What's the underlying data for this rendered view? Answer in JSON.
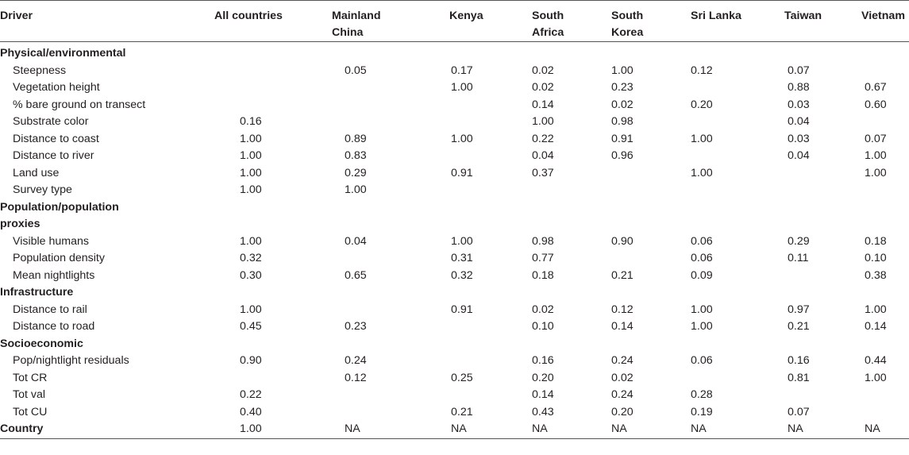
{
  "columns": [
    "Driver",
    "All countries",
    "Mainland China",
    "Kenya",
    "South Africa",
    "South Korea",
    "Sri Lanka",
    "Taiwan",
    "Vietnam"
  ],
  "rows": [
    {
      "type": "section",
      "label": "Physical/environmental",
      "values": [
        "",
        "",
        "",
        "",
        "",
        "",
        "",
        ""
      ]
    },
    {
      "type": "item",
      "label": "Steepness",
      "values": [
        "",
        "0.05",
        "0.17",
        "0.02",
        "1.00",
        "0.12",
        "0.07",
        ""
      ]
    },
    {
      "type": "item",
      "label": "Vegetation height",
      "values": [
        "",
        "",
        "1.00",
        "0.02",
        "0.23",
        "",
        "0.88",
        "0.67"
      ]
    },
    {
      "type": "item",
      "label": "% bare ground on transect",
      "values": [
        "",
        "",
        "",
        "0.14",
        "0.02",
        "0.20",
        "0.03",
        "0.60"
      ]
    },
    {
      "type": "item",
      "label": "Substrate color",
      "values": [
        "0.16",
        "",
        "",
        "1.00",
        "0.98",
        "",
        "0.04",
        ""
      ]
    },
    {
      "type": "item",
      "label": "Distance to coast",
      "values": [
        "1.00",
        "0.89",
        "1.00",
        "0.22",
        "0.91",
        "1.00",
        "0.03",
        "0.07"
      ]
    },
    {
      "type": "item",
      "label": "Distance to river",
      "values": [
        "1.00",
        "0.83",
        "",
        "0.04",
        "0.96",
        "",
        "0.04",
        "1.00"
      ]
    },
    {
      "type": "item",
      "label": "Land use",
      "values": [
        "1.00",
        "0.29",
        "0.91",
        "0.37",
        "",
        "1.00",
        "",
        "1.00"
      ]
    },
    {
      "type": "item",
      "label": "Survey type",
      "values": [
        "1.00",
        "1.00",
        "",
        "",
        "",
        "",
        "",
        ""
      ]
    },
    {
      "type": "section",
      "label": "Population/population",
      "values": [
        "",
        "",
        "",
        "",
        "",
        "",
        "",
        ""
      ]
    },
    {
      "type": "section",
      "label": "proxies",
      "values": [
        "",
        "",
        "",
        "",
        "",
        "",
        "",
        ""
      ]
    },
    {
      "type": "item",
      "label": "Visible humans",
      "values": [
        "1.00",
        "0.04",
        "1.00",
        "0.98",
        "0.90",
        "0.06",
        "0.29",
        "0.18"
      ]
    },
    {
      "type": "item",
      "label": "Population density",
      "values": [
        "0.32",
        "",
        "0.31",
        "0.77",
        "",
        "0.06",
        "0.11",
        "0.10"
      ]
    },
    {
      "type": "item",
      "label": "Mean nightlights",
      "values": [
        "0.30",
        "0.65",
        "0.32",
        "0.18",
        "0.21",
        "0.09",
        "",
        "0.38"
      ]
    },
    {
      "type": "section",
      "label": "Infrastructure",
      "values": [
        "",
        "",
        "",
        "",
        "",
        "",
        "",
        ""
      ]
    },
    {
      "type": "item",
      "label": "Distance to rail",
      "values": [
        "1.00",
        "",
        "0.91",
        "0.02",
        "0.12",
        "1.00",
        "0.97",
        "1.00"
      ]
    },
    {
      "type": "item",
      "label": "Distance to road",
      "values": [
        "0.45",
        "0.23",
        "",
        "0.10",
        "0.14",
        "1.00",
        "0.21",
        "0.14"
      ]
    },
    {
      "type": "section",
      "label": "Socioeconomic",
      "values": [
        "",
        "",
        "",
        "",
        "",
        "",
        "",
        ""
      ]
    },
    {
      "type": "item",
      "label": "Pop/nightlight residuals",
      "values": [
        "0.90",
        "0.24",
        "",
        "0.16",
        "0.24",
        "0.06",
        "0.16",
        "0.44"
      ]
    },
    {
      "type": "item",
      "label": "Tot CR",
      "values": [
        "",
        "0.12",
        "0.25",
        "0.20",
        "0.02",
        "",
        "0.81",
        "1.00"
      ]
    },
    {
      "type": "item",
      "label": "Tot val",
      "values": [
        "0.22",
        "",
        "",
        "0.14",
        "0.24",
        "0.28",
        "",
        ""
      ]
    },
    {
      "type": "item",
      "label": "Tot CU",
      "values": [
        "0.40",
        "",
        "0.21",
        "0.43",
        "0.20",
        "0.19",
        "0.07",
        ""
      ]
    },
    {
      "type": "section",
      "label": "Country",
      "values": [
        "1.00",
        "NA",
        "NA",
        "NA",
        "NA",
        "NA",
        "NA",
        "NA"
      ]
    }
  ]
}
